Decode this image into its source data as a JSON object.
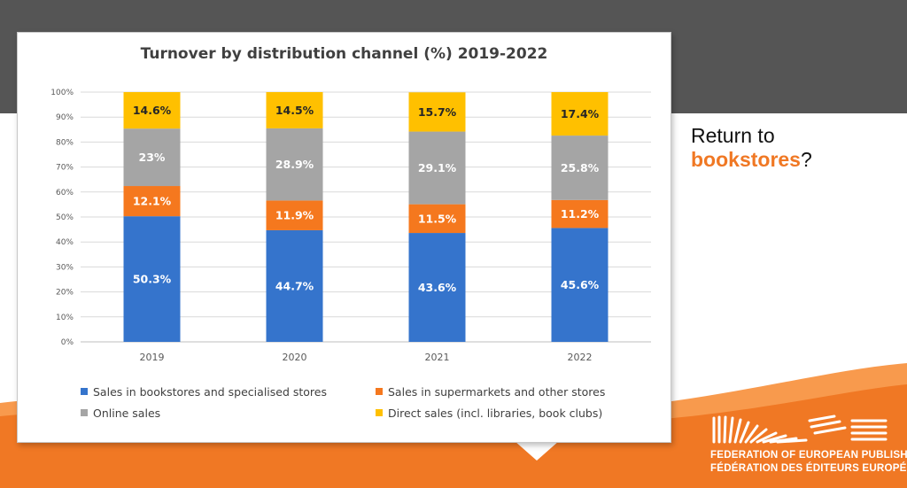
{
  "slide": {
    "colors": {
      "dark_band": "#555555",
      "orange": "#f07824",
      "orange_light": "#f89a4d"
    },
    "side_text_line1": "Return to",
    "side_text_accent": "bookstores",
    "side_text_suffix": "?",
    "logo": {
      "line1": "FEDERATION OF EUROPEAN PUBLISHERS",
      "line2": "FÉDÉRATION DES ÉDITEURS EUROPÉENS"
    }
  },
  "chart_data": {
    "type": "bar",
    "stacked": true,
    "title": "Turnover by distribution channel (%) 2019-2022",
    "categories": [
      "2019",
      "2020",
      "2021",
      "2022"
    ],
    "series": [
      {
        "name": "Sales in bookstores and specialised stores",
        "color": "#3574cc",
        "values": [
          50.3,
          44.7,
          43.6,
          45.6
        ],
        "labels": [
          "50.3%",
          "44.7%",
          "43.6%",
          "45.6%"
        ],
        "label_color": "#ffffff"
      },
      {
        "name": "Sales in supermarkets and other stores",
        "color": "#f5781e",
        "values": [
          12.1,
          11.9,
          11.5,
          11.2
        ],
        "labels": [
          "12.1%",
          "11.9%",
          "11.5%",
          "11.2%"
        ],
        "label_color": "#ffffff"
      },
      {
        "name": "Online sales",
        "color": "#a5a5a5",
        "values": [
          23,
          28.9,
          29.1,
          25.8
        ],
        "labels": [
          "23%",
          "28.9%",
          "29.1%",
          "25.8%"
        ],
        "label_color": "#ffffff"
      },
      {
        "name": "Direct sales (incl. libraries, book clubs)",
        "color": "#ffc000",
        "values": [
          14.6,
          14.5,
          15.7,
          17.4
        ],
        "labels": [
          "14.6%",
          "14.5%",
          "15.7%",
          "17.4%"
        ],
        "label_color": "#262626"
      }
    ],
    "ylim": [
      0,
      100
    ],
    "yticks": [
      "0%",
      "10%",
      "20%",
      "30%",
      "40%",
      "50%",
      "60%",
      "70%",
      "80%",
      "90%",
      "100%"
    ],
    "grid": true,
    "legend": "bottom"
  }
}
